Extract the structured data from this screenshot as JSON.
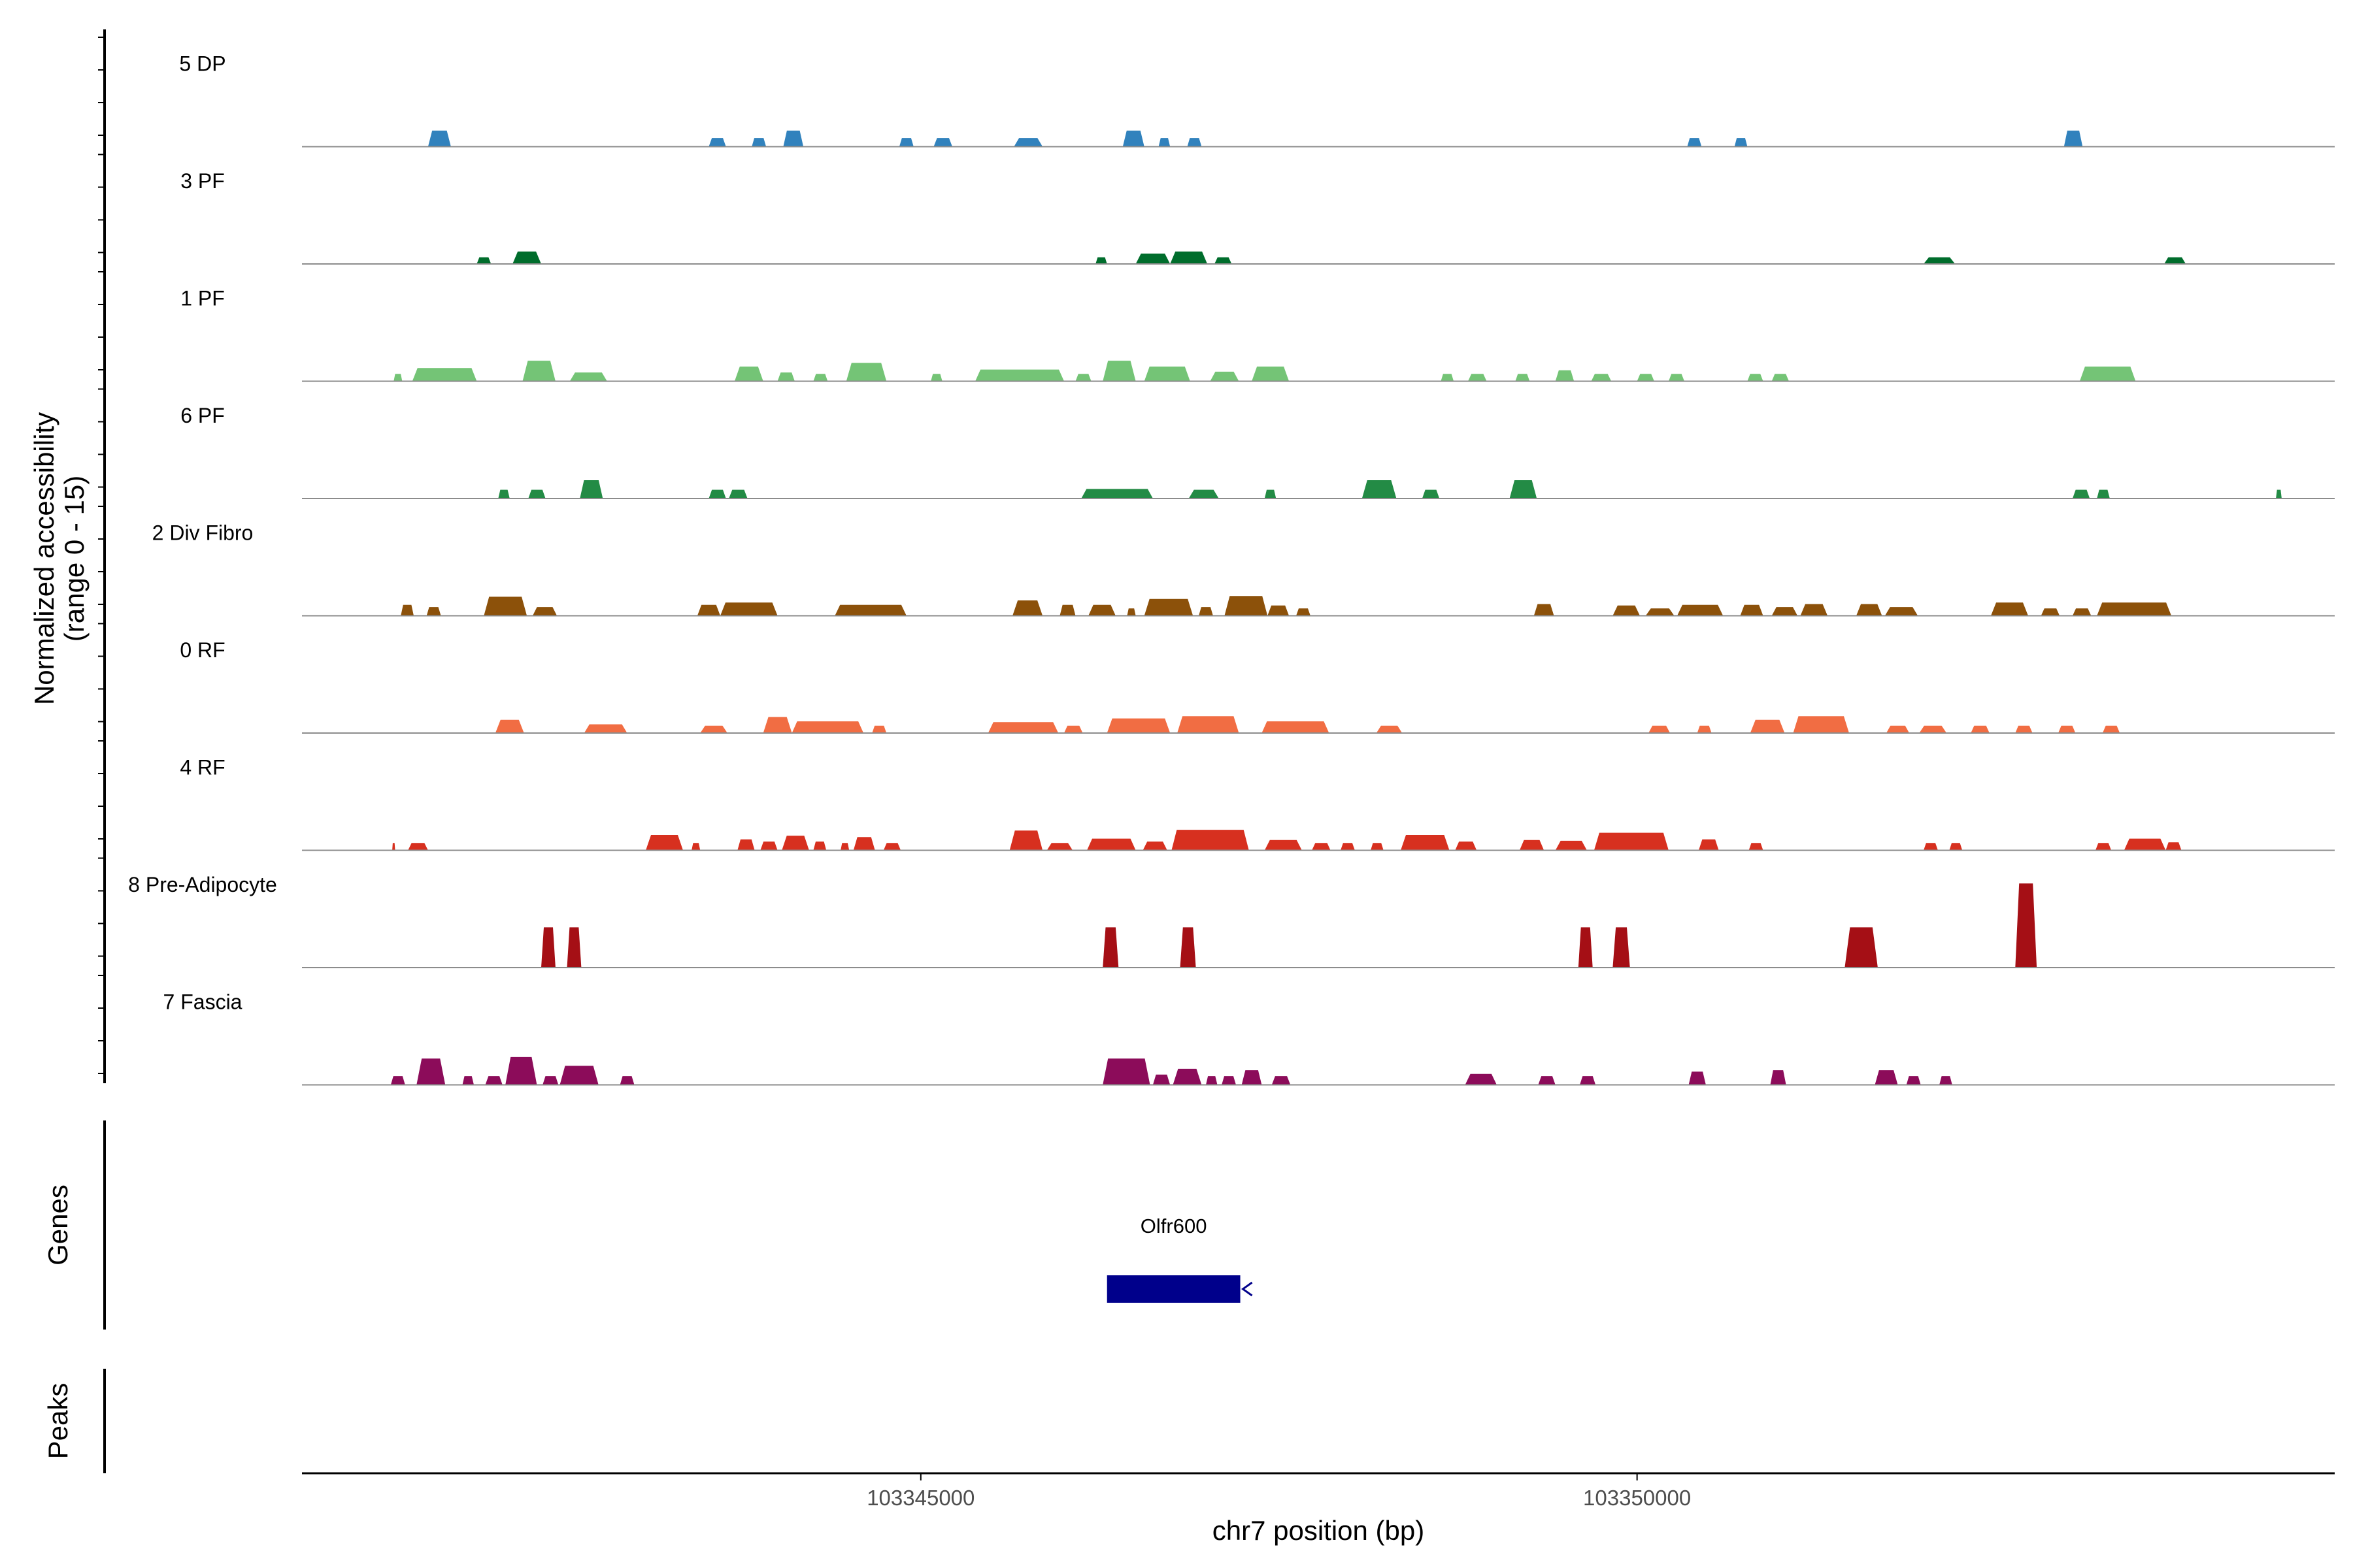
{
  "chart_data": {
    "type": "area",
    "title": "",
    "xlabel": "chr7 position (bp)",
    "ylabel": "Normalized accessibility",
    "ylabel_sub": "(range 0 - 15)",
    "ylim": [
      0,
      15
    ],
    "xlim": [
      103340680,
      103354870
    ],
    "x_ticks": [
      103345000,
      103350000
    ],
    "grid": false,
    "tracks": [
      {
        "name": "5 DP",
        "color": "#3182bd",
        "peaks": [
          [
            103341560,
            103341720,
            2.2
          ],
          [
            103343520,
            103343640,
            1.2
          ],
          [
            103343820,
            103343920,
            1.2
          ],
          [
            103344040,
            103344180,
            2.2
          ],
          [
            103344850,
            103344950,
            1.2
          ],
          [
            103345090,
            103345220,
            1.2
          ],
          [
            103345650,
            103345850,
            1.2
          ],
          [
            103346410,
            103346560,
            2.2
          ],
          [
            103346660,
            103346740,
            1.2
          ],
          [
            103346860,
            103346960,
            1.2
          ],
          [
            103350350,
            103350450,
            1.2
          ],
          [
            103350680,
            103350770,
            1.2
          ],
          [
            103352980,
            103353110,
            2.2
          ]
        ]
      },
      {
        "name": "3 PF",
        "color": "#006d2c",
        "peaks": [
          [
            103341900,
            103342000,
            0.9
          ],
          [
            103342150,
            103342350,
            1.7
          ],
          [
            103346220,
            103346300,
            0.9
          ],
          [
            103346500,
            103346740,
            1.4
          ],
          [
            103346740,
            103347000,
            1.7
          ],
          [
            103347050,
            103347170,
            0.9
          ],
          [
            103352000,
            103352220,
            0.9
          ],
          [
            103353680,
            103353830,
            0.9
          ]
        ]
      },
      {
        "name": "1 PF",
        "color": "#74c476",
        "peaks": [
          [
            103341320,
            103341380,
            1
          ],
          [
            103341450,
            103341900,
            1.8
          ],
          [
            103342220,
            103342450,
            2.8
          ],
          [
            103342550,
            103342810,
            1.2
          ],
          [
            103343700,
            103343900,
            2
          ],
          [
            103344000,
            103344120,
            1.2
          ],
          [
            103344250,
            103344350,
            1
          ],
          [
            103344480,
            103344760,
            2.5
          ],
          [
            103345070,
            103345150,
            1
          ],
          [
            103345380,
            103346000,
            1.6
          ],
          [
            103346080,
            103346190,
            1
          ],
          [
            103346270,
            103346500,
            2.8
          ],
          [
            103346560,
            103346880,
            2
          ],
          [
            103347020,
            103347220,
            1.3
          ],
          [
            103347310,
            103347570,
            2
          ],
          [
            103348630,
            103348720,
            1
          ],
          [
            103348820,
            103348950,
            1
          ],
          [
            103349150,
            103349250,
            1
          ],
          [
            103349430,
            103349560,
            1.5
          ],
          [
            103349680,
            103349820,
            1
          ],
          [
            103350000,
            103350120,
            1
          ],
          [
            103350220,
            103350330,
            1
          ],
          [
            103350770,
            103350880,
            1
          ],
          [
            103350940,
            103351060,
            1
          ],
          [
            103353090,
            103353480,
            2
          ]
        ]
      },
      {
        "name": "6 PF",
        "color": "#238b45",
        "peaks": [
          [
            103342050,
            103342130,
            1.2
          ],
          [
            103342260,
            103342380,
            1.2
          ],
          [
            103342620,
            103342780,
            2.5
          ],
          [
            103343520,
            103343640,
            1.2
          ],
          [
            103343660,
            103343790,
            1.2
          ],
          [
            103346120,
            103346620,
            1.3
          ],
          [
            103346870,
            103347080,
            1.2
          ],
          [
            103347400,
            103347480,
            1.2
          ],
          [
            103348080,
            103348320,
            2.5
          ],
          [
            103348500,
            103348620,
            1.2
          ],
          [
            103349110,
            103349300,
            2.5
          ],
          [
            103353040,
            103353160,
            1.2
          ],
          [
            103353210,
            103353300,
            1.2
          ],
          [
            103354460,
            103354500,
            1.2
          ]
        ]
      },
      {
        "name": "2 Div Fibro",
        "color": "#8c510a",
        "peaks": [
          [
            103341370,
            103341460,
            1.5
          ],
          [
            103341550,
            103341650,
            1.2
          ],
          [
            103341950,
            103342250,
            2.6
          ],
          [
            103342290,
            103342460,
            1.2
          ],
          [
            103343440,
            103343600,
            1.5
          ],
          [
            103343600,
            103344000,
            1.8
          ],
          [
            103344400,
            103344900,
            1.5
          ],
          [
            103345640,
            103345850,
            2.1
          ],
          [
            103345970,
            103346080,
            1.5
          ],
          [
            103346170,
            103346360,
            1.5
          ],
          [
            103346440,
            103346500,
            1
          ],
          [
            103346560,
            103346900,
            2.3
          ],
          [
            103346940,
            103347040,
            1.2
          ],
          [
            103347120,
            103347420,
            2.7
          ],
          [
            103347420,
            103347570,
            1.4
          ],
          [
            103347620,
            103347720,
            1
          ],
          [
            103349280,
            103349420,
            1.6
          ],
          [
            103349830,
            103350020,
            1.4
          ],
          [
            103350060,
            103350260,
            1
          ],
          [
            103350280,
            103350600,
            1.5
          ],
          [
            103350720,
            103350880,
            1.5
          ],
          [
            103350940,
            103351120,
            1.2
          ],
          [
            103351140,
            103351330,
            1.6
          ],
          [
            103351530,
            103351710,
            1.6
          ],
          [
            103351730,
            103351960,
            1.2
          ],
          [
            103352470,
            103352730,
            1.8
          ],
          [
            103352820,
            103352950,
            1
          ],
          [
            103353040,
            103353170,
            1
          ],
          [
            103353210,
            103353730,
            1.8
          ]
        ]
      },
      {
        "name": "0 RF",
        "color": "#f16d43",
        "peaks": [
          [
            103342030,
            103342230,
            1.8
          ],
          [
            103342650,
            103342950,
            1.2
          ],
          [
            103343460,
            103343650,
            1
          ],
          [
            103343900,
            103344100,
            2.2
          ],
          [
            103344100,
            103344600,
            1.6
          ],
          [
            103344660,
            103344760,
            1
          ],
          [
            103345470,
            103345960,
            1.5
          ],
          [
            103346000,
            103346130,
            1
          ],
          [
            103346300,
            103346740,
            2
          ],
          [
            103346790,
            103347220,
            2.3
          ],
          [
            103347380,
            103347850,
            1.6
          ],
          [
            103348180,
            103348360,
            1
          ],
          [
            103350080,
            103350230,
            1
          ],
          [
            103350420,
            103350520,
            1
          ],
          [
            103350790,
            103351030,
            1.8
          ],
          [
            103351090,
            103351480,
            2.3
          ],
          [
            103351740,
            103351900,
            1
          ],
          [
            103351970,
            103352160,
            1
          ],
          [
            103352330,
            103352460,
            1
          ],
          [
            103352640,
            103352760,
            1
          ],
          [
            103352940,
            103353060,
            1
          ],
          [
            103353250,
            103353370,
            1
          ]
        ]
      },
      {
        "name": "4 RF",
        "color": "#d7301f",
        "peaks": [
          [
            103341310,
            103341330,
            1
          ],
          [
            103341420,
            103341560,
            1
          ],
          [
            103343080,
            103343340,
            2.1
          ],
          [
            103343400,
            103343460,
            1
          ],
          [
            103343720,
            103343840,
            1.5
          ],
          [
            103343880,
            103344000,
            1.2
          ],
          [
            103344030,
            103344220,
            2
          ],
          [
            103344250,
            103344340,
            1.2
          ],
          [
            103344440,
            103344500,
            1
          ],
          [
            103344530,
            103344680,
            1.8
          ],
          [
            103344740,
            103344860,
            1
          ],
          [
            103345620,
            103345850,
            2.7
          ],
          [
            103345880,
            103346060,
            1
          ],
          [
            103346160,
            103346500,
            1.6
          ],
          [
            103346550,
            103346720,
            1.2
          ],
          [
            103346750,
            103347290,
            2.8
          ],
          [
            103347400,
            103347660,
            1.4
          ],
          [
            103347730,
            103347860,
            1
          ],
          [
            103347930,
            103348030,
            1
          ],
          [
            103348140,
            103348230,
            1
          ],
          [
            103348350,
            103348690,
            2.1
          ],
          [
            103348730,
            103348880,
            1.2
          ],
          [
            103349180,
            103349350,
            1.4
          ],
          [
            103349430,
            103349650,
            1.3
          ],
          [
            103349700,
            103350220,
            2.4
          ],
          [
            103350430,
            103350570,
            1.5
          ],
          [
            103350780,
            103350880,
            1
          ],
          [
            103352000,
            103352100,
            1
          ],
          [
            103352180,
            103352270,
            1
          ],
          [
            103353200,
            103353310,
            1
          ],
          [
            103353400,
            103353690,
            1.6
          ],
          [
            103353690,
            103353800,
            1.1
          ]
        ]
      },
      {
        "name": "8 Pre-Adipocyte",
        "color": "#a50f15",
        "peaks": [
          [
            103342350,
            103342450,
            5.5
          ],
          [
            103342530,
            103342630,
            5.5
          ],
          [
            103346270,
            103346380,
            5.5
          ],
          [
            103346810,
            103346920,
            5.5
          ],
          [
            103349590,
            103349690,
            5.5
          ],
          [
            103349830,
            103349950,
            5.5
          ],
          [
            103351450,
            103351680,
            5.5
          ],
          [
            103352640,
            103352790,
            11.5
          ]
        ]
      },
      {
        "name": "7 Fascia",
        "color": "#8c0c5a",
        "peaks": [
          [
            103341300,
            103341400,
            1.2
          ],
          [
            103341480,
            103341680,
            3.6
          ],
          [
            103341800,
            103341880,
            1.2
          ],
          [
            103341960,
            103342080,
            1.2
          ],
          [
            103342100,
            103342320,
            3.8
          ],
          [
            103342360,
            103342470,
            1.2
          ],
          [
            103342480,
            103342750,
            2.6
          ],
          [
            103342900,
            103343000,
            1.2
          ],
          [
            103346270,
            103346600,
            3.6
          ],
          [
            103346620,
            103346740,
            1.4
          ],
          [
            103346760,
            103346960,
            2.2
          ],
          [
            103346990,
            103347070,
            1.2
          ],
          [
            103347100,
            103347200,
            1.2
          ],
          [
            103347240,
            103347380,
            2
          ],
          [
            103347450,
            103347580,
            1.2
          ],
          [
            103348800,
            103349020,
            1.5
          ],
          [
            103349310,
            103349430,
            1.2
          ],
          [
            103349600,
            103349710,
            1.2
          ],
          [
            103350360,
            103350480,
            1.8
          ],
          [
            103350930,
            103351040,
            2
          ],
          [
            103351660,
            103351820,
            2
          ],
          [
            103351880,
            103351980,
            1.2
          ],
          [
            103352110,
            103352200,
            1.2
          ]
        ]
      }
    ],
    "genes_panel_label": "Genes",
    "peaks_panel_label": "Peaks",
    "genes": [
      {
        "name": "Olfr600",
        "start": 103346300,
        "end": 103347230,
        "strand": "-",
        "color": "#00008b"
      }
    ]
  }
}
